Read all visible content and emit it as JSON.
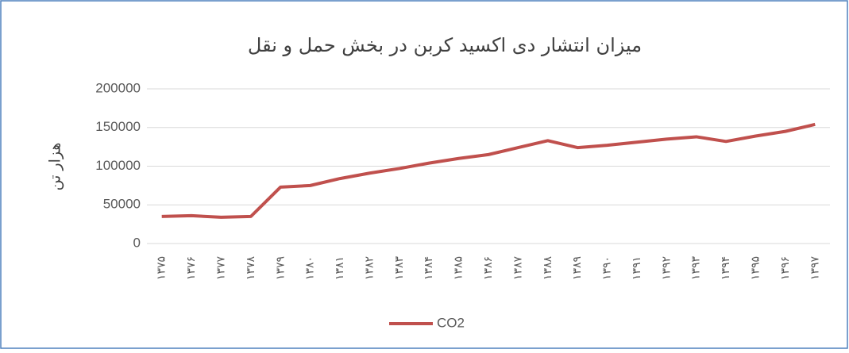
{
  "chart_data": {
    "type": "line",
    "title": "میزان انتشار دی اکسید کربن در بخش حمل و نقل",
    "y_label": "هزار تن",
    "categories": [
      "۱۳۷۵",
      "۱۳۷۶",
      "۱۳۷۷",
      "۱۳۷۸",
      "۱۳۷۹",
      "۱۳۸۰",
      "۱۳۸۱",
      "۱۳۸۲",
      "۱۳۸۳",
      "۱۳۸۴",
      "۱۳۸۵",
      "۱۳۸۶",
      "۱۳۸۷",
      "۱۳۸۸",
      "۱۳۸۹",
      "۱۳۹۰",
      "۱۳۹۱",
      "۱۳۹۲",
      "۱۳۹۳",
      "۱۳۹۴",
      "۱۳۹۵",
      "۱۳۹۶",
      "۱۳۹۷"
    ],
    "series": [
      {
        "name": "CO2",
        "color": "#c0504d",
        "values": [
          35000,
          36000,
          34000,
          35000,
          73000,
          75000,
          84000,
          91000,
          97000,
          104000,
          110000,
          115000,
          124000,
          133000,
          124000,
          127000,
          131000,
          135000,
          138000,
          132000,
          139000,
          145000,
          154000
        ]
      }
    ],
    "ylim": [
      0,
      200000
    ],
    "yticks": [
      0,
      50000,
      100000,
      150000,
      200000
    ],
    "grid": true,
    "legend": "bottom"
  }
}
